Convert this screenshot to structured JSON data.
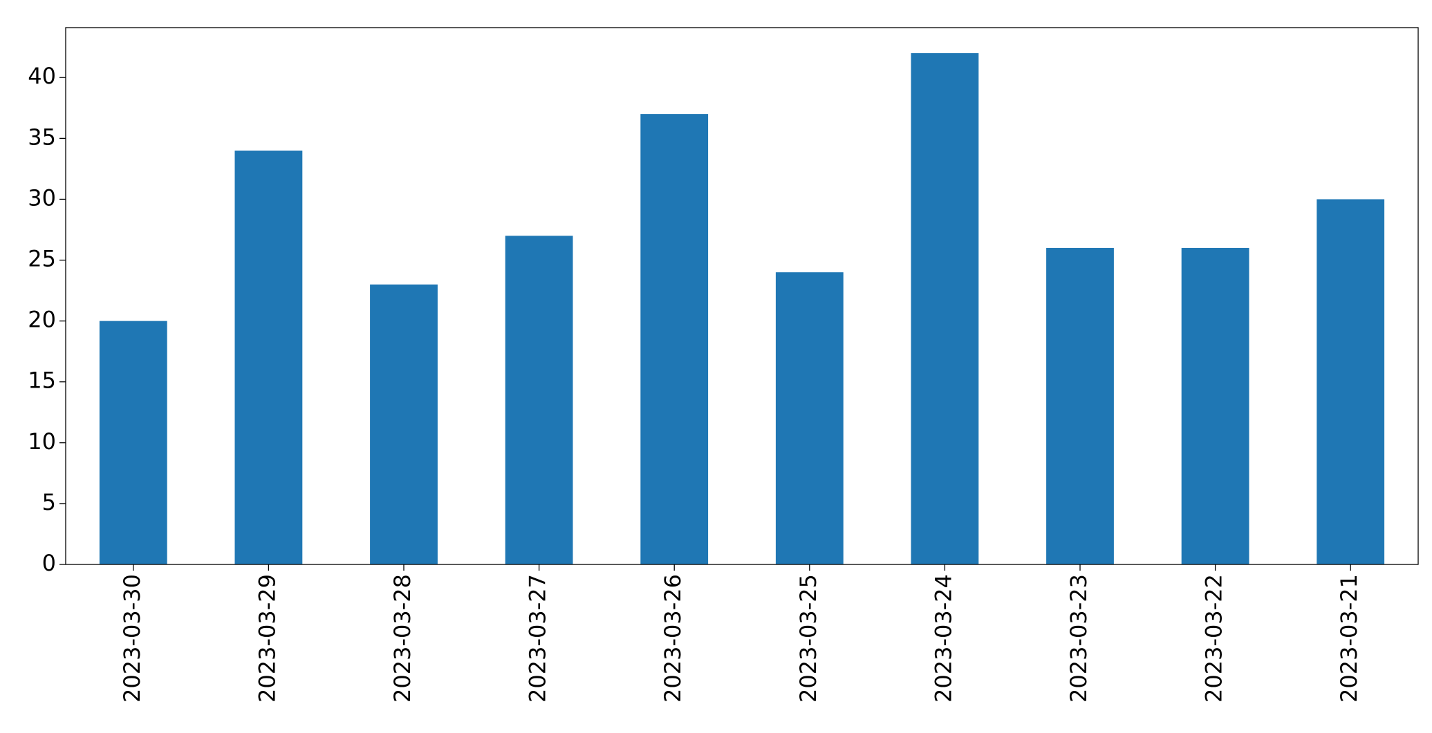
{
  "chart_data": {
    "type": "bar",
    "categories": [
      "2023-03-30",
      "2023-03-29",
      "2023-03-28",
      "2023-03-27",
      "2023-03-26",
      "2023-03-25",
      "2023-03-24",
      "2023-03-23",
      "2023-03-22",
      "2023-03-21"
    ],
    "values": [
      20,
      34,
      23,
      27,
      37,
      24,
      42,
      26,
      26,
      30
    ],
    "color": "#1f77b4",
    "ylim": [
      0,
      44.1
    ],
    "yticks": [
      0,
      5,
      10,
      15,
      20,
      25,
      30,
      35,
      40
    ],
    "grid": false
  }
}
